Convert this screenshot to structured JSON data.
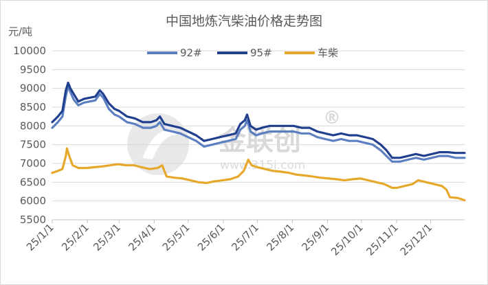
{
  "chart_data": {
    "type": "line",
    "title": "中国地炼汽柴油价格走势图",
    "ylabel": "元/吨",
    "ylim": [
      5500,
      10000
    ],
    "yticks": [
      "10000",
      "9500",
      "9000",
      "8500",
      "8000",
      "7500",
      "7000",
      "6500",
      "6000",
      "5500"
    ],
    "x_range": [
      "2025-01-01",
      "2025-12-31"
    ],
    "xticks": [
      "25/1/1",
      "25/2/1",
      "25/3/1",
      "25/4/1",
      "25/5/1",
      "25/6/1",
      "25/7/1",
      "25/8/1",
      "25/9/1",
      "25/10/1",
      "25/11/1",
      "25/12/1"
    ],
    "xtick_dates": [
      "2025-01-01",
      "2025-02-01",
      "2025-03-01",
      "2025-04-01",
      "2025-05-01",
      "2025-06-01",
      "2025-07-01",
      "2025-08-01",
      "2025-09-01",
      "2025-10-01",
      "2025-11-01",
      "2025-12-01"
    ],
    "legend_position": "top",
    "grid": "horizontal",
    "series": [
      {
        "name": "92#",
        "color": "#5b7fc0",
        "points": [
          [
            "2025-01-01",
            7950
          ],
          [
            "2025-01-06",
            8100
          ],
          [
            "2025-01-10",
            8250
          ],
          [
            "2025-01-13",
            8800
          ],
          [
            "2025-01-15",
            9050
          ],
          [
            "2025-01-17",
            8900
          ],
          [
            "2025-01-20",
            8700
          ],
          [
            "2025-01-24",
            8550
          ],
          [
            "2025-01-29",
            8620
          ],
          [
            "2025-02-03",
            8650
          ],
          [
            "2025-02-08",
            8680
          ],
          [
            "2025-02-12",
            8850
          ],
          [
            "2025-02-15",
            8750
          ],
          [
            "2025-02-20",
            8450
          ],
          [
            "2025-02-25",
            8300
          ],
          [
            "2025-03-01",
            8250
          ],
          [
            "2025-03-08",
            8100
          ],
          [
            "2025-03-15",
            8050
          ],
          [
            "2025-03-22",
            7950
          ],
          [
            "2025-03-29",
            7950
          ],
          [
            "2025-04-03",
            8000
          ],
          [
            "2025-04-06",
            8100
          ],
          [
            "2025-04-10",
            7900
          ],
          [
            "2025-04-17",
            7850
          ],
          [
            "2025-04-24",
            7800
          ],
          [
            "2025-05-01",
            7700
          ],
          [
            "2025-05-08",
            7600
          ],
          [
            "2025-05-15",
            7450
          ],
          [
            "2025-05-22",
            7500
          ],
          [
            "2025-05-29",
            7550
          ],
          [
            "2025-06-05",
            7600
          ],
          [
            "2025-06-12",
            7650
          ],
          [
            "2025-06-16",
            7900
          ],
          [
            "2025-06-20",
            8000
          ],
          [
            "2025-06-22",
            8150
          ],
          [
            "2025-06-25",
            7850
          ],
          [
            "2025-06-30",
            7750
          ],
          [
            "2025-07-05",
            7800
          ],
          [
            "2025-07-12",
            7850
          ],
          [
            "2025-07-19",
            7850
          ],
          [
            "2025-07-26",
            7850
          ],
          [
            "2025-08-02",
            7850
          ],
          [
            "2025-08-09",
            7800
          ],
          [
            "2025-08-16",
            7800
          ],
          [
            "2025-08-23",
            7700
          ],
          [
            "2025-08-30",
            7650
          ],
          [
            "2025-09-06",
            7600
          ],
          [
            "2025-09-13",
            7650
          ],
          [
            "2025-09-20",
            7600
          ],
          [
            "2025-09-27",
            7600
          ],
          [
            "2025-10-04",
            7550
          ],
          [
            "2025-10-11",
            7500
          ],
          [
            "2025-10-18",
            7350
          ],
          [
            "2025-10-23",
            7200
          ],
          [
            "2025-10-28",
            7050
          ],
          [
            "2025-11-04",
            7050
          ],
          [
            "2025-11-11",
            7100
          ],
          [
            "2025-11-18",
            7150
          ],
          [
            "2025-11-25",
            7100
          ],
          [
            "2025-12-02",
            7150
          ],
          [
            "2025-12-09",
            7200
          ],
          [
            "2025-12-16",
            7200
          ],
          [
            "2025-12-23",
            7150
          ],
          [
            "2025-12-31",
            7150
          ]
        ]
      },
      {
        "name": "95#",
        "color": "#203f8f",
        "points": [
          [
            "2025-01-01",
            8100
          ],
          [
            "2025-01-06",
            8250
          ],
          [
            "2025-01-10",
            8400
          ],
          [
            "2025-01-13",
            8950
          ],
          [
            "2025-01-15",
            9150
          ],
          [
            "2025-01-17",
            9000
          ],
          [
            "2025-01-20",
            8850
          ],
          [
            "2025-01-24",
            8650
          ],
          [
            "2025-01-29",
            8720
          ],
          [
            "2025-02-03",
            8750
          ],
          [
            "2025-02-08",
            8780
          ],
          [
            "2025-02-12",
            8950
          ],
          [
            "2025-02-15",
            8850
          ],
          [
            "2025-02-20",
            8600
          ],
          [
            "2025-02-25",
            8450
          ],
          [
            "2025-03-01",
            8400
          ],
          [
            "2025-03-08",
            8250
          ],
          [
            "2025-03-15",
            8200
          ],
          [
            "2025-03-22",
            8100
          ],
          [
            "2025-03-29",
            8100
          ],
          [
            "2025-04-03",
            8150
          ],
          [
            "2025-04-06",
            8250
          ],
          [
            "2025-04-10",
            8050
          ],
          [
            "2025-04-17",
            8000
          ],
          [
            "2025-04-24",
            7950
          ],
          [
            "2025-05-01",
            7850
          ],
          [
            "2025-05-08",
            7750
          ],
          [
            "2025-05-15",
            7600
          ],
          [
            "2025-05-22",
            7650
          ],
          [
            "2025-05-29",
            7700
          ],
          [
            "2025-06-05",
            7750
          ],
          [
            "2025-06-12",
            7800
          ],
          [
            "2025-06-16",
            8050
          ],
          [
            "2025-06-20",
            8150
          ],
          [
            "2025-06-22",
            8300
          ],
          [
            "2025-06-25",
            8000
          ],
          [
            "2025-06-30",
            7900
          ],
          [
            "2025-07-05",
            7950
          ],
          [
            "2025-07-12",
            8000
          ],
          [
            "2025-07-19",
            8000
          ],
          [
            "2025-07-26",
            8000
          ],
          [
            "2025-08-02",
            8000
          ],
          [
            "2025-08-09",
            7950
          ],
          [
            "2025-08-16",
            7950
          ],
          [
            "2025-08-23",
            7850
          ],
          [
            "2025-08-30",
            7800
          ],
          [
            "2025-09-06",
            7750
          ],
          [
            "2025-09-13",
            7800
          ],
          [
            "2025-09-20",
            7750
          ],
          [
            "2025-09-27",
            7750
          ],
          [
            "2025-10-04",
            7700
          ],
          [
            "2025-10-11",
            7650
          ],
          [
            "2025-10-18",
            7500
          ],
          [
            "2025-10-23",
            7350
          ],
          [
            "2025-10-28",
            7150
          ],
          [
            "2025-11-04",
            7150
          ],
          [
            "2025-11-11",
            7200
          ],
          [
            "2025-11-18",
            7250
          ],
          [
            "2025-11-25",
            7200
          ],
          [
            "2025-12-02",
            7250
          ],
          [
            "2025-12-09",
            7300
          ],
          [
            "2025-12-16",
            7300
          ],
          [
            "2025-12-23",
            7280
          ],
          [
            "2025-12-31",
            7280
          ]
        ]
      },
      {
        "name": "车柴",
        "color": "#e6a82b",
        "points": [
          [
            "2025-01-01",
            6750
          ],
          [
            "2025-01-06",
            6800
          ],
          [
            "2025-01-10",
            6850
          ],
          [
            "2025-01-13",
            7200
          ],
          [
            "2025-01-14",
            7400
          ],
          [
            "2025-01-16",
            7200
          ],
          [
            "2025-01-19",
            6950
          ],
          [
            "2025-01-24",
            6880
          ],
          [
            "2025-01-31",
            6880
          ],
          [
            "2025-02-07",
            6900
          ],
          [
            "2025-02-14",
            6920
          ],
          [
            "2025-02-21",
            6950
          ],
          [
            "2025-02-28",
            6980
          ],
          [
            "2025-03-07",
            6950
          ],
          [
            "2025-03-14",
            6950
          ],
          [
            "2025-03-21",
            6900
          ],
          [
            "2025-03-28",
            6850
          ],
          [
            "2025-04-04",
            6880
          ],
          [
            "2025-04-08",
            6950
          ],
          [
            "2025-04-12",
            6650
          ],
          [
            "2025-04-19",
            6620
          ],
          [
            "2025-04-26",
            6600
          ],
          [
            "2025-05-03",
            6550
          ],
          [
            "2025-05-10",
            6500
          ],
          [
            "2025-05-17",
            6480
          ],
          [
            "2025-05-24",
            6520
          ],
          [
            "2025-05-31",
            6550
          ],
          [
            "2025-06-07",
            6580
          ],
          [
            "2025-06-14",
            6650
          ],
          [
            "2025-06-19",
            6800
          ],
          [
            "2025-06-23",
            7100
          ],
          [
            "2025-06-26",
            6950
          ],
          [
            "2025-07-01",
            6900
          ],
          [
            "2025-07-08",
            6850
          ],
          [
            "2025-07-15",
            6800
          ],
          [
            "2025-07-22",
            6780
          ],
          [
            "2025-07-29",
            6750
          ],
          [
            "2025-08-05",
            6700
          ],
          [
            "2025-08-12",
            6680
          ],
          [
            "2025-08-19",
            6650
          ],
          [
            "2025-08-26",
            6620
          ],
          [
            "2025-09-02",
            6600
          ],
          [
            "2025-09-09",
            6580
          ],
          [
            "2025-09-16",
            6550
          ],
          [
            "2025-09-23",
            6580
          ],
          [
            "2025-09-30",
            6600
          ],
          [
            "2025-10-07",
            6550
          ],
          [
            "2025-10-14",
            6500
          ],
          [
            "2025-10-21",
            6450
          ],
          [
            "2025-10-28",
            6350
          ],
          [
            "2025-11-01",
            6350
          ],
          [
            "2025-11-08",
            6400
          ],
          [
            "2025-11-15",
            6450
          ],
          [
            "2025-11-20",
            6550
          ],
          [
            "2025-11-27",
            6500
          ],
          [
            "2025-12-04",
            6450
          ],
          [
            "2025-12-11",
            6400
          ],
          [
            "2025-12-15",
            6300
          ],
          [
            "2025-12-18",
            6100
          ],
          [
            "2025-12-25",
            6080
          ],
          [
            "2025-12-31",
            6020
          ]
        ]
      }
    ]
  },
  "watermark": {
    "brand": "金联创",
    "mark": "®",
    "url": "www.315i.com"
  }
}
